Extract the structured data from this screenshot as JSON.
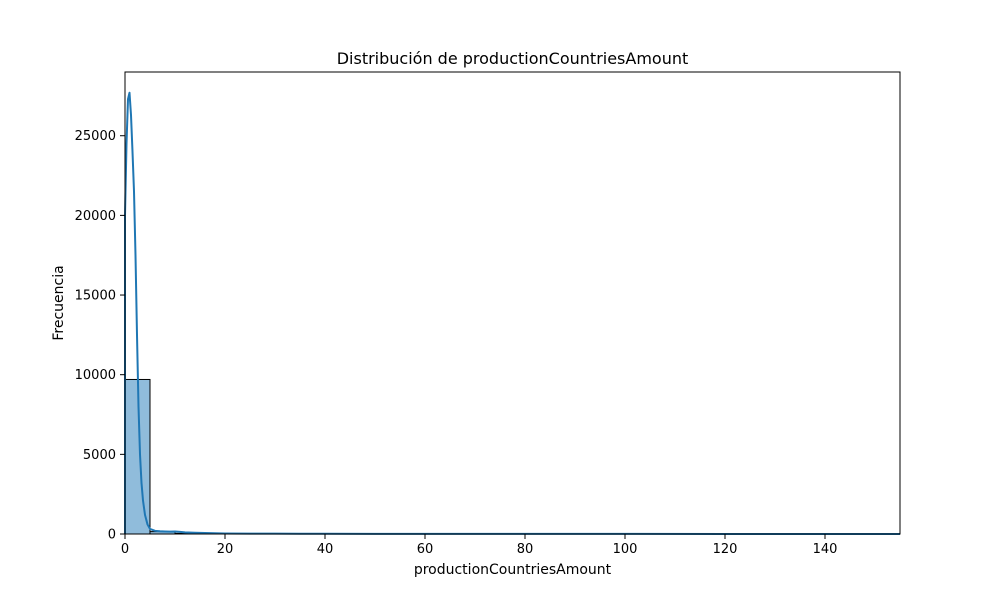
{
  "chart_data": {
    "type": "bar",
    "subtype": "histogram-with-kde",
    "title": "Distribución de productionCountriesAmount",
    "xlabel": "productionCountriesAmount",
    "ylabel": "Frecuencia",
    "xlim": [
      0,
      155
    ],
    "ylim": [
      0,
      29000
    ],
    "x_ticks": [
      {
        "value": 0,
        "label": "0"
      },
      {
        "value": 20,
        "label": "20"
      },
      {
        "value": 40,
        "label": "40"
      },
      {
        "value": 60,
        "label": "60"
      },
      {
        "value": 80,
        "label": "80"
      },
      {
        "value": 100,
        "label": "100"
      },
      {
        "value": 120,
        "label": "120"
      },
      {
        "value": 140,
        "label": "140"
      }
    ],
    "y_ticks": [
      {
        "value": 0,
        "label": "0"
      },
      {
        "value": 5000,
        "label": "5000"
      },
      {
        "value": 10000,
        "label": "10000"
      },
      {
        "value": 15000,
        "label": "15000"
      },
      {
        "value": 20000,
        "label": "20000"
      },
      {
        "value": 25000,
        "label": "25000"
      }
    ],
    "grid": false,
    "legend": "none",
    "bin_width": 5,
    "bins": [
      {
        "x0": 0,
        "x1": 5,
        "count": 9700
      },
      {
        "x0": 5,
        "x1": 10,
        "count": 150
      },
      {
        "x0": 10,
        "x1": 15,
        "count": 40
      },
      {
        "x0": 15,
        "x1": 20,
        "count": 15
      },
      {
        "x0": 20,
        "x1": 25,
        "count": 8
      },
      {
        "x0": 25,
        "x1": 30,
        "count": 5
      },
      {
        "x0": 30,
        "x1": 35,
        "count": 3
      },
      {
        "x0": 35,
        "x1": 40,
        "count": 2
      },
      {
        "x0": 40,
        "x1": 45,
        "count": 2
      },
      {
        "x0": 45,
        "x1": 50,
        "count": 1
      },
      {
        "x0": 50,
        "x1": 55,
        "count": 1
      },
      {
        "x0": 55,
        "x1": 60,
        "count": 1
      },
      {
        "x0": 60,
        "x1": 65,
        "count": 1
      },
      {
        "x0": 65,
        "x1": 70,
        "count": 1
      },
      {
        "x0": 70,
        "x1": 75,
        "count": 1
      },
      {
        "x0": 75,
        "x1": 80,
        "count": 1
      },
      {
        "x0": 80,
        "x1": 85,
        "count": 1
      },
      {
        "x0": 85,
        "x1": 90,
        "count": 1
      },
      {
        "x0": 90,
        "x1": 95,
        "count": 1
      },
      {
        "x0": 95,
        "x1": 100,
        "count": 1
      },
      {
        "x0": 100,
        "x1": 105,
        "count": 1
      },
      {
        "x0": 105,
        "x1": 110,
        "count": 1
      },
      {
        "x0": 110,
        "x1": 115,
        "count": 1
      },
      {
        "x0": 115,
        "x1": 120,
        "count": 1
      },
      {
        "x0": 120,
        "x1": 125,
        "count": 1
      },
      {
        "x0": 125,
        "x1": 130,
        "count": 1
      },
      {
        "x0": 130,
        "x1": 135,
        "count": 1
      },
      {
        "x0": 135,
        "x1": 140,
        "count": 1
      },
      {
        "x0": 140,
        "x1": 145,
        "count": 1
      },
      {
        "x0": 145,
        "x1": 150,
        "count": 1
      },
      {
        "x0": 150,
        "x1": 155,
        "count": 1
      }
    ],
    "kde": {
      "x": [
        0,
        0.3,
        0.6,
        0.9,
        1.2,
        1.5,
        1.8,
        2.1,
        2.4,
        2.7,
        3.0,
        3.3,
        3.6,
        4.0,
        4.5,
        5.0,
        6.0,
        7.0,
        8.0,
        9.0,
        10.0,
        11.0,
        12.0,
        14.0,
        16.0,
        18.0,
        20.0,
        25.0,
        30.0,
        35.0,
        40.0,
        50.0,
        60.0,
        80.0,
        100.0,
        120.0,
        140.0,
        155.0
      ],
      "y": [
        20000,
        24500,
        27300,
        27700,
        26300,
        24000,
        21500,
        17500,
        12500,
        8000,
        5000,
        3200,
        2100,
        1200,
        600,
        320,
        200,
        170,
        160,
        150,
        160,
        130,
        100,
        80,
        60,
        45,
        35,
        25,
        20,
        15,
        12,
        10,
        8,
        6,
        5,
        4,
        3,
        2
      ]
    },
    "colors": {
      "bar_fill": "#90bcdb",
      "bar_edge": "#000000",
      "kde_line": "#1f77b4",
      "axes": "#000000",
      "background": "#ffffff"
    }
  }
}
